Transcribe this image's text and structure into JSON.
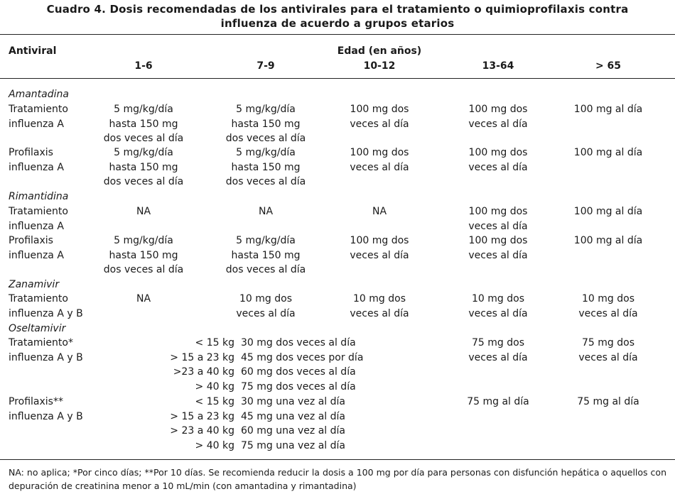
{
  "title": {
    "line1": "Cuadro 4. Dosis recomendadas de los antivirales para el tratamiento o quimioprofilaxis contra",
    "line2": "influenza de acuerdo a grupos etarios"
  },
  "header": {
    "antiviral": "Antiviral",
    "age_group": "Edad (en años)",
    "cols": [
      "1-6",
      "7-9",
      "10-12",
      "13-64",
      "> 65"
    ]
  },
  "amantadina": {
    "name": "Amantadina",
    "tratamiento": {
      "label": [
        "Tratamiento",
        "influenza A"
      ],
      "c1": [
        "5 mg/kg/día",
        "hasta 150 mg",
        "dos veces al día"
      ],
      "c2": [
        "5 mg/kg/día",
        "hasta 150 mg",
        "dos veces al día"
      ],
      "c3": [
        "100 mg dos",
        "veces al día"
      ],
      "c4": [
        "100 mg dos",
        "veces al día"
      ],
      "c5": [
        "100 mg al día"
      ]
    },
    "profilaxis": {
      "label": [
        "Profilaxis",
        "influenza A"
      ],
      "c1": [
        "5 mg/kg/día",
        "hasta 150 mg",
        "dos veces al día"
      ],
      "c2": [
        "5 mg/kg/día",
        "hasta 150 mg",
        "dos veces al día"
      ],
      "c3": [
        "100 mg dos",
        "veces al día"
      ],
      "c4": [
        "100 mg dos",
        "veces al día"
      ],
      "c5": [
        "100 mg al día"
      ]
    }
  },
  "rimantidina": {
    "name": "Rimantidina",
    "tratamiento": {
      "label": [
        "Tratamiento",
        "influenza A"
      ],
      "c1": [
        "NA"
      ],
      "c2": [
        "NA"
      ],
      "c3": [
        "NA"
      ],
      "c4": [
        "100 mg dos",
        "veces al día"
      ],
      "c5": [
        "100 mg al día"
      ]
    },
    "profilaxis": {
      "label": [
        "Profilaxis",
        "influenza A"
      ],
      "c1": [
        "5 mg/kg/día",
        "hasta 150 mg",
        "dos veces al día"
      ],
      "c2": [
        "5 mg/kg/día",
        "hasta 150 mg",
        "dos veces al día"
      ],
      "c3": [
        "100 mg dos",
        "veces al día"
      ],
      "c4": [
        "100 mg dos",
        "veces al día"
      ],
      "c5": [
        "100 mg al día"
      ]
    }
  },
  "zanamivir": {
    "name": "Zanamivir",
    "tratamiento": {
      "label": [
        "Tratamiento",
        "influenza A y B"
      ],
      "c1": [
        "NA"
      ],
      "c2": [
        "10 mg dos",
        "veces al día"
      ],
      "c3": [
        "10 mg dos",
        "veces al día"
      ],
      "c4": [
        "10 mg dos",
        "veces al día"
      ],
      "c5": [
        "10 mg dos",
        "veces al día"
      ]
    }
  },
  "oseltamivir": {
    "name": "Oseltamivir",
    "tratamiento": {
      "label": [
        "Tratamiento*",
        "influenza A y B"
      ],
      "weights": [
        "< 15 kg",
        "> 15 a 23 kg",
        ">23 a 40 kg",
        "> 40 kg"
      ],
      "doses": [
        "30 mg dos veces al día",
        "45 mg dos veces por día",
        "60 mg dos veces al día",
        "75 mg dos veces al día"
      ],
      "c4": [
        "75 mg dos",
        "veces al día"
      ],
      "c5": [
        "75 mg dos",
        "veces al día"
      ]
    },
    "profilaxis": {
      "label": [
        "Profilaxis**",
        "influenza A y B"
      ],
      "weights": [
        "< 15 kg",
        "> 15 a 23 kg",
        "> 23 a 40 kg",
        "> 40 kg"
      ],
      "doses": [
        "30 mg una vez al día",
        "45 mg una vez al día",
        "60 mg una vez al día",
        "75 mg una vez al día"
      ],
      "c4": [
        "75 mg al día"
      ],
      "c5": [
        "75 mg al día"
      ]
    }
  },
  "footnote": "NA: no aplica; *Por cinco días; **Por 10 días. Se recomienda reducir la dosis a 100 mg por día para personas con disfunción hepática o aquellos con depuración de creatinina menor a 10 mL/min (con amantadina y rimantadina)"
}
